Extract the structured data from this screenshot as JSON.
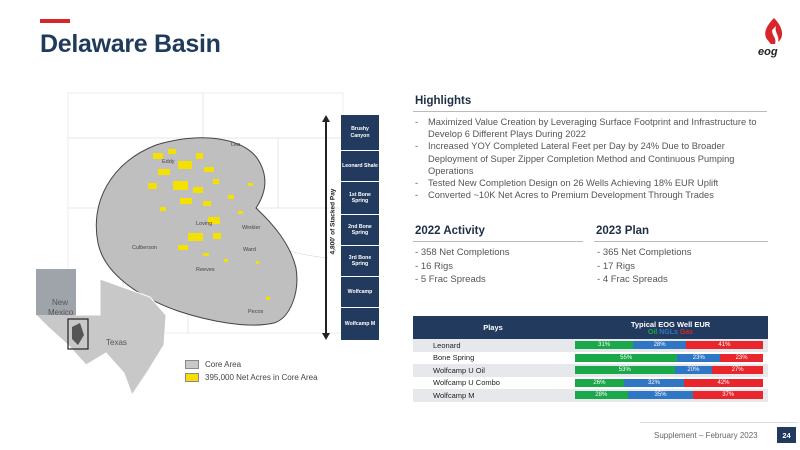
{
  "header": {
    "title": "Delaware Basin",
    "logo_text": "eog"
  },
  "map": {
    "state_labels": [
      "New",
      "Mexico",
      "Texas"
    ],
    "county_labels": [
      "Eddy",
      "Lea",
      "Loving",
      "Winkler",
      "Culberson",
      "Ward",
      "Reeves",
      "Pecos"
    ],
    "stack_label": "4,800' of Stacked Pay",
    "columns": [
      "Brushy Canyon",
      "Leonard Shale",
      "1st Bone Spring",
      "2nd Bone Spring",
      "3rd Bone Spring",
      "Wolfcamp",
      "Wolfcamp M"
    ],
    "legend": [
      {
        "label": "Core Area",
        "color": "#c8c8c8"
      },
      {
        "label": "395,000 Net Acres in Core Area",
        "color": "#f5e100"
      }
    ]
  },
  "highlights": {
    "title": "Highlights",
    "items": [
      "Maximized Value Creation by Leveraging Surface Footprint and Infrastructure to Develop 6 Different Plays During 2022",
      "Increased YOY Completed Lateral Feet per Day by 24% Due to Broader Deployment of Super Zipper Completion Method and Continuous Pumping Operations",
      "Tested New Completion Design on 26 Wells Achieving 18% EUR Uplift",
      "Converted ~10K Net Acres to Premium Development Through Trades"
    ]
  },
  "activity": {
    "title": "2022 Activity",
    "items": [
      "358 Net Completions",
      "16 Rigs",
      "5 Frac Spreads"
    ]
  },
  "plan": {
    "title": "2023 Plan",
    "items": [
      "365 Net Completions",
      "17 Rigs",
      "4 Frac Spreads"
    ]
  },
  "eur_table": {
    "col_plays": "Plays",
    "col_eur": "Typical EOG Well EUR",
    "legend": [
      "Oil",
      "NGLs",
      "Gas"
    ],
    "colors": {
      "oil": "#1aa84a",
      "ngl": "#2f76c4",
      "gas": "#e8262b"
    },
    "rows": [
      {
        "play": "Leonard",
        "oil": 31,
        "ngl": 28,
        "gas": 41
      },
      {
        "play": "Bone Spring",
        "oil": 55,
        "ngl": 23,
        "gas": 23
      },
      {
        "play": "Wolfcamp U Oil",
        "oil": 53,
        "ngl": 20,
        "gas": 27
      },
      {
        "play": "Wolfcamp U Combo",
        "oil": 26,
        "ngl": 32,
        "gas": 42
      },
      {
        "play": "Wolfcamp M",
        "oil": 28,
        "ngl": 35,
        "gas": 37
      }
    ]
  },
  "footer": {
    "text": "Supplement – February 2023",
    "page": "24"
  }
}
